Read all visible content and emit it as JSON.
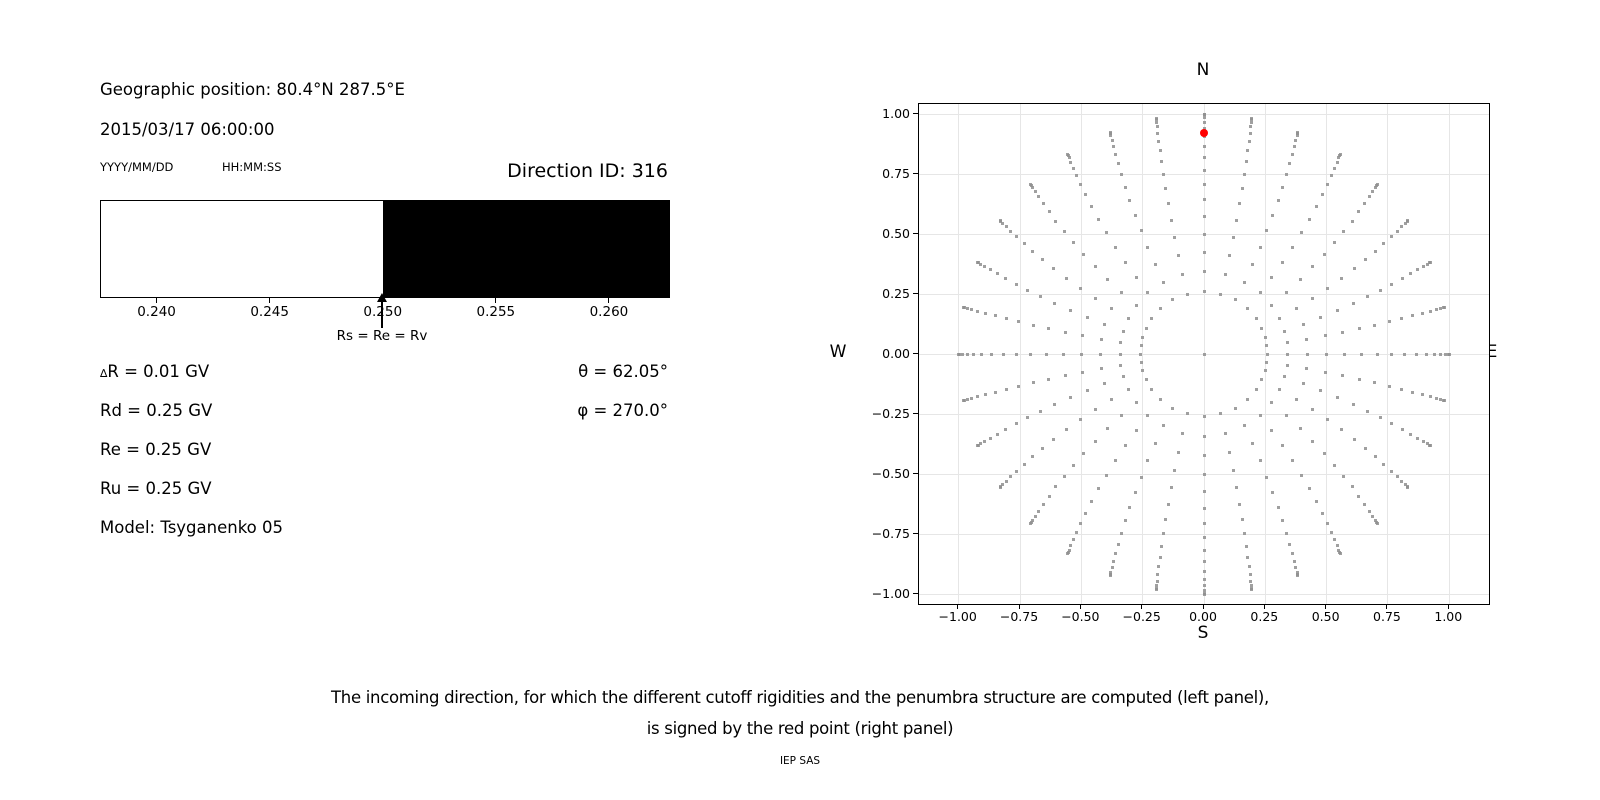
{
  "info_panel": {
    "geo_position": "Geographic position: 80.4°N 287.5°E",
    "datetime": "2015/03/17 06:00:00",
    "date_format_label": "YYYY/MM/DD",
    "time_format_label": "HH:MM:SS",
    "direction_id": "Direction ID: 316",
    "values_left": [
      "∆R = 0.01 GV",
      "Rd = 0.25 GV",
      "Re = 0.25 GV",
      "Ru = 0.25 GV",
      "Model: Tsyganenko 05"
    ],
    "values_right": [
      "θ = 62.05°",
      "φ = 270.0°"
    ]
  },
  "caption": {
    "line1": "The incoming direction, for which the different cutoff rigidities and the penumbra structure are computed (left panel),",
    "line2": "is signed by the red point (right panel)",
    "footer": "IEP SAS"
  },
  "chart_data": [
    {
      "type": "bar",
      "name": "penumbra-structure",
      "xlim": [
        0.2375,
        0.2627
      ],
      "x_ticks": [
        0.24,
        0.245,
        0.25,
        0.255,
        0.26
      ],
      "x_tick_labels": [
        "0.240",
        "0.245",
        "0.250",
        "0.255",
        "0.260"
      ],
      "segments": [
        {
          "from": 0.2375,
          "to": 0.25,
          "color": "#ffffff"
        },
        {
          "from": 0.25,
          "to": 0.2627,
          "color": "#000000"
        }
      ],
      "annotation": {
        "x": 0.25,
        "text": "Rs = Re = Rv"
      }
    },
    {
      "type": "scatter",
      "name": "incoming-direction-grid",
      "xlim": [
        -1.163,
        1.163
      ],
      "ylim": [
        -1.042,
        1.042
      ],
      "x_tick_labels": [
        "−1.00",
        "−0.75",
        "−0.50",
        "−0.25",
        "0.00",
        "0.25",
        "0.50",
        "0.75",
        "1.00"
      ],
      "y_tick_labels": [
        "1.00",
        "0.75",
        "0.50",
        "0.25",
        "0.00",
        "−0.25",
        "−0.50",
        "−0.75",
        "−1.00"
      ],
      "x_tick_values": [
        -1.0,
        -0.75,
        -0.5,
        -0.25,
        0.0,
        0.25,
        0.5,
        0.75,
        1.0
      ],
      "y_tick_values": [
        1.0,
        0.75,
        0.5,
        0.25,
        0.0,
        -0.25,
        -0.5,
        -0.75,
        -1.0
      ],
      "grid": true,
      "compass_labels": {
        "top": "N",
        "bottom": "S",
        "left": "W",
        "right": "E"
      },
      "point_color": "#8f8f8f",
      "pattern": {
        "description": "direction grid: 32 azimuth spokes, zenith rings 15..90 deg step 5, radius = sin(zenith), gentle pinwheel curvature mirrored about N-S axis, plus single center dot",
        "azimuth_count": 32,
        "azimuth_step_deg": 11.25,
        "zenith_start_deg": 15,
        "zenith_end_deg": 90,
        "zenith_step_deg": 5,
        "radius_mapping": "sin(zenith)",
        "curvature_deg": 10,
        "center_dot": true
      },
      "red_point": {
        "x": 0.0,
        "y": 0.92,
        "color": "#ff0000"
      }
    }
  ]
}
